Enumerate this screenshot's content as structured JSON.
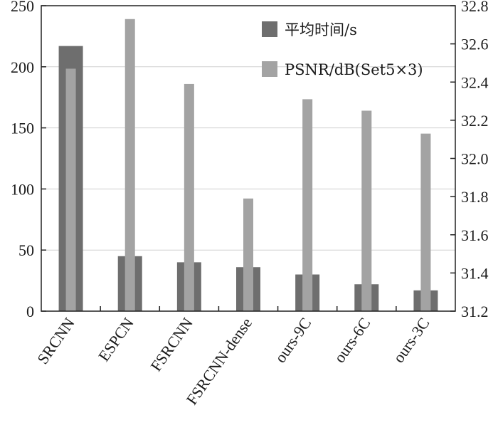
{
  "chart_data": {
    "type": "bar",
    "categories": [
      "SRCNN",
      "ESPCN",
      "FSRCNN",
      "FSRCNN-dense",
      "ours-9C",
      "ours-6C",
      "ours-3C"
    ],
    "series": [
      {
        "name": "平均时间/s",
        "axis": "left",
        "color": "#6e6e6e",
        "values": [
          217,
          45,
          40,
          36,
          30,
          22,
          17
        ]
      },
      {
        "name": "PSNR/dB(Set5×3)",
        "axis": "right",
        "color": "#a3a3a3",
        "values": [
          32.47,
          32.73,
          32.39,
          31.79,
          32.31,
          32.25,
          32.13
        ]
      }
    ],
    "yleft": {
      "min": 0,
      "max": 250,
      "ticks": [
        0,
        50,
        100,
        150,
        200,
        250
      ]
    },
    "yright": {
      "min": 31.2,
      "max": 32.8,
      "ticks": [
        "31.2",
        "31.4",
        "31.6",
        "31.8",
        "32.0",
        "32.2",
        "32.4",
        "32.6",
        "32.8"
      ]
    },
    "grid": true,
    "legend_position": "top-right"
  }
}
